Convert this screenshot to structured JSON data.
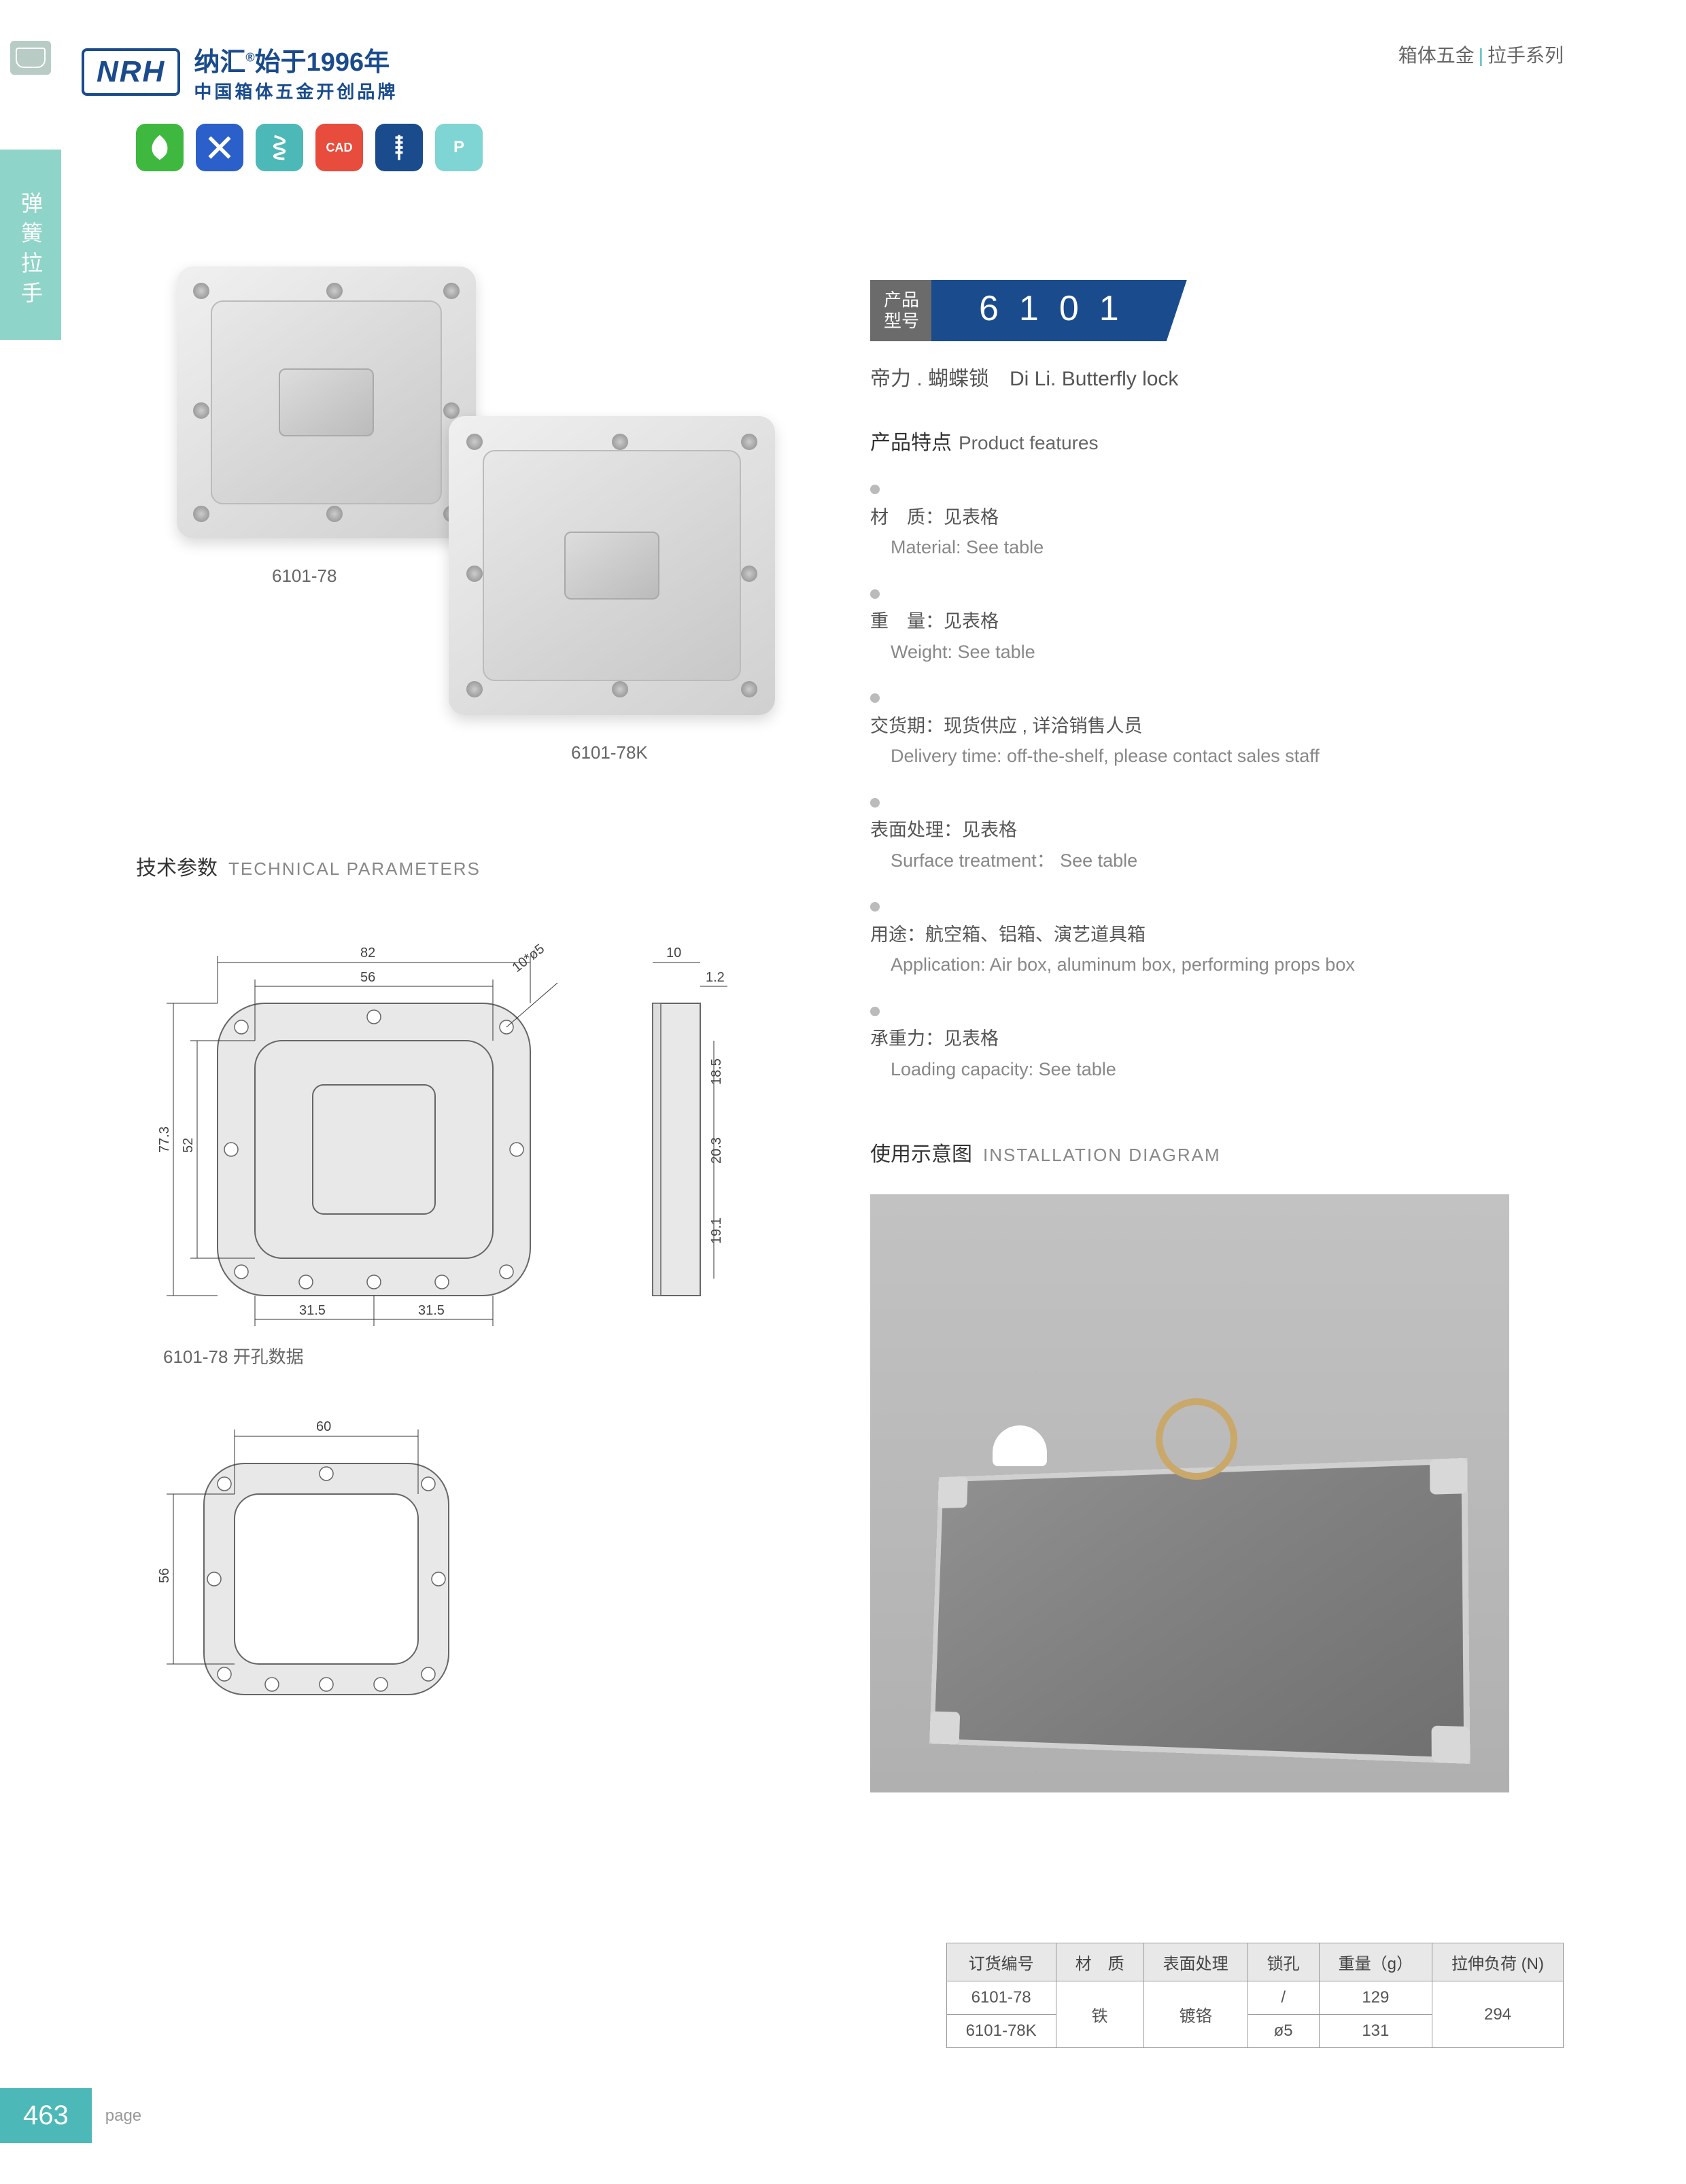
{
  "header": {
    "logo": "NRH",
    "brand_cn": "纳汇",
    "brand_year": "始于1996年",
    "brand_sub": "中国箱体五金开创品牌",
    "category": "箱体五金",
    "subcategory": "拉手系列"
  },
  "side_tab": "弹簧拉手",
  "icon_badges": [
    {
      "color": "#3fb83f",
      "glyph": "leaf"
    },
    {
      "color": "#2b5fc9",
      "glyph": "tools"
    },
    {
      "color": "#4db8b8",
      "glyph": "spring"
    },
    {
      "color": "#e74c3c",
      "glyph": "CAD"
    },
    {
      "color": "#1a4b8c",
      "glyph": "screw"
    },
    {
      "color": "#7fd4d4",
      "glyph": "P"
    }
  ],
  "product": {
    "img1_label": "6101-78",
    "img2_label": "6101-78K",
    "model_label": "产品\n型号",
    "model_number": "6101",
    "name_cn": "帝力 . 蝴蝶锁",
    "name_en": "Di Li. Butterfly lock"
  },
  "features": {
    "title_cn": "产品特点",
    "title_en": "Product features",
    "items": [
      {
        "cn": "材　质：见表格",
        "en": "Material: See table"
      },
      {
        "cn": "重　量：见表格",
        "en": "Weight: See table"
      },
      {
        "cn": "交货期：现货供应 , 详洽销售人员",
        "en": "Delivery time: off-the-shelf, please contact sales staff"
      },
      {
        "cn": "表面处理：见表格",
        "en": "Surface treatment： See table"
      },
      {
        "cn": "用途：航空箱、铝箱、演艺道具箱",
        "en": "Application: Air box, aluminum box, performing props box"
      },
      {
        "cn": "承重力：见表格",
        "en": "Loading capacity: See table"
      }
    ]
  },
  "tech": {
    "title_cn": "技术参数",
    "title_en": "TECHNICAL PARAMETERS",
    "hole_label": "6101-78 开孔数据",
    "dims": {
      "w_outer": "82",
      "w_inner": "56",
      "h_outer": "77.3",
      "h_inner": "52",
      "bottom_half": "31.5",
      "side_depth": "10",
      "side_t": "1.2",
      "side_h1": "18.5",
      "side_h2": "20.3",
      "side_h3": "19.1",
      "hole_note": "10*ø5",
      "hole_w": "60",
      "hole_h": "56"
    }
  },
  "install": {
    "title_cn": "使用示意图",
    "title_en": "INSTALLATION DIAGRAM"
  },
  "spec_table": {
    "headers": [
      "订货编号",
      "材　质",
      "表面处理",
      "锁孔",
      "重量（g）",
      "拉伸负荷 (N)"
    ],
    "rows": [
      [
        "6101-78",
        "铁",
        "镀铬",
        "/",
        "129",
        "294"
      ],
      [
        "6101-78K",
        "铁",
        "镀铬",
        "ø5",
        "131",
        "294"
      ]
    ],
    "merge": {
      "material_rowspan": 2,
      "surface_rowspan": 2,
      "load_rowspan": 2
    }
  },
  "page_number": "463",
  "page_label": "page"
}
